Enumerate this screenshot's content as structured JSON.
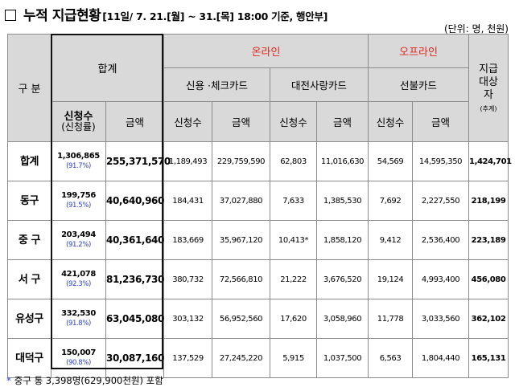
{
  "title": {
    "checkbox": "□",
    "main": "누적 지급현황",
    "sub": "[11일/ 7. 21.[월] ~ 31.[목] 18:00 기준, 행안부]"
  },
  "unit": "(단위: 명, 천원)",
  "header": {
    "category": "구  분",
    "total": "합계",
    "online": "온라인",
    "offline": "오프라인",
    "recipients_line1": "지급",
    "recipients_line2": "대상",
    "recipients_line3": "자",
    "recipients_note": "(추계)",
    "credit_check": "신용 ·체크카드",
    "daejeon_card": "대전사랑카드",
    "prepaid_card": "선불카드",
    "applications": "신청수",
    "application_rate": "(신청률)",
    "amount": "금액"
  },
  "rows": [
    {
      "region": "합계",
      "total_apps": "1,306,865",
      "rate": "(91.7%)",
      "total_amount": "255,371,570",
      "credit_apps": "1,189,493",
      "credit_amount": "229,759,590",
      "daejeon_apps": "62,803",
      "daejeon_amount": "11,016,630",
      "prepaid_apps": "54,569",
      "prepaid_amount": "14,595,350",
      "recipients": "1,424,701"
    },
    {
      "region": "동구",
      "total_apps": "199,756",
      "rate": "(91.5%)",
      "total_amount": "40,640,960",
      "credit_apps": "184,431",
      "credit_amount": "37,027,880",
      "daejeon_apps": "7,633",
      "daejeon_amount": "1,385,530",
      "prepaid_apps": "7,692",
      "prepaid_amount": "2,227,550",
      "recipients": "218,199"
    },
    {
      "region": "중  구",
      "total_apps": "203,494",
      "rate": "(91.2%)",
      "total_amount": "40,361,640",
      "credit_apps": "183,669",
      "credit_amount": "35,967,120",
      "daejeon_apps": "10,413*",
      "daejeon_amount": "1,858,120",
      "prepaid_apps": "9,412",
      "prepaid_amount": "2,536,400",
      "recipients": "223,189"
    },
    {
      "region": "서  구",
      "total_apps": "421,078",
      "rate": "(92.3%)",
      "total_amount": "81,236,730",
      "credit_apps": "380,732",
      "credit_amount": "72,566,810",
      "daejeon_apps": "21,222",
      "daejeon_amount": "3,676,520",
      "prepaid_apps": "19,124",
      "prepaid_amount": "4,993,400",
      "recipients": "456,080"
    },
    {
      "region": "유성구",
      "total_apps": "332,530",
      "rate": "(91.8%)",
      "total_amount": "63,045,080",
      "credit_apps": "303,132",
      "credit_amount": "56,952,560",
      "daejeon_apps": "17,620",
      "daejeon_amount": "3,058,960",
      "prepaid_apps": "11,778",
      "prepaid_amount": "3,033,560",
      "recipients": "362,102"
    },
    {
      "region": "대덕구",
      "total_apps": "150,007",
      "rate": "(90.8%)",
      "total_amount": "30,087,160",
      "credit_apps": "137,529",
      "credit_amount": "27,245,220",
      "daejeon_apps": "5,915",
      "daejeon_amount": "1,037,500",
      "prepaid_apps": "6,563",
      "prepaid_amount": "1,804,440",
      "recipients": "165,131"
    }
  ],
  "footnote": {
    "star": "*",
    "text": "중구 통 3,398명(629,900천원) 포함"
  },
  "colors": {
    "header_bg": "#d9d9d9",
    "online_offline": "#e0271c",
    "rate": "#2b3fd1"
  }
}
